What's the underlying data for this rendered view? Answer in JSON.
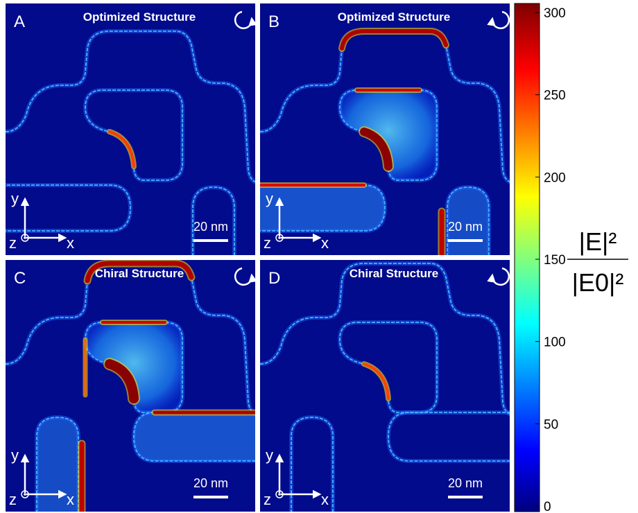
{
  "panels": [
    {
      "letter": "A",
      "title": "Optimized Structure",
      "scale_bar": "20 nm",
      "axis_y": "y",
      "axis_z": "z",
      "axis_x": "x"
    },
    {
      "letter": "B",
      "title": "Optimized Structure",
      "scale_bar": "20 nm",
      "axis_y": "y",
      "axis_z": "z",
      "axis_x": "x"
    },
    {
      "letter": "C",
      "title": "Chiral Structure",
      "scale_bar": "20 nm",
      "axis_y": "y",
      "axis_z": "z",
      "axis_x": "x"
    },
    {
      "letter": "D",
      "title": "Chiral Structure",
      "scale_bar": "20 nm",
      "axis_y": "y",
      "axis_z": "z",
      "axis_x": "x"
    }
  ],
  "colorbar": {
    "range": [
      0,
      300
    ],
    "ticks": [
      0,
      50,
      100,
      150,
      200,
      250,
      300
    ],
    "label_numerator": "|E|²",
    "label_denominator": "|E0|²"
  }
}
